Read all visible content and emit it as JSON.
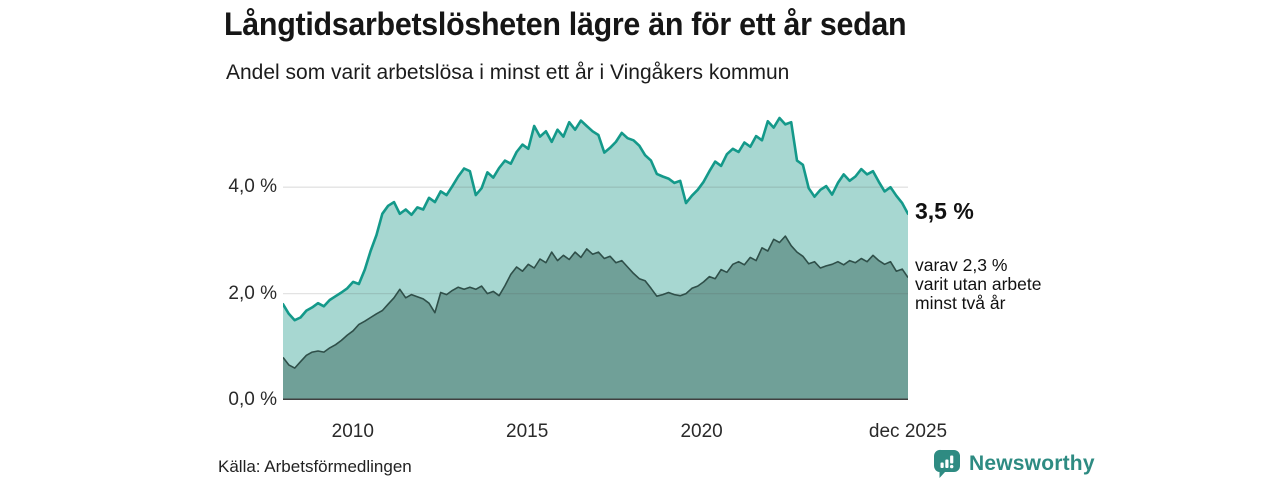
{
  "header": {
    "title": "Långtidsarbetslösheten lägre än för ett år sedan",
    "subtitle": "Andel som varit arbetslösa i minst ett år i Vingåkers kommun"
  },
  "annotations": {
    "end_value": "3,5 %",
    "sub_lines": [
      "varav 2,3 %",
      "varit utan arbete",
      "minst två år"
    ]
  },
  "footer": {
    "source": "Källa: Arbetsförmedlingen",
    "brand": "Newsworthy"
  },
  "colors": {
    "line_total": "#14998a",
    "fill_total": "#a7d7d1",
    "line_two_year": "#2f4f49",
    "fill_two_year": "#70a098",
    "grid": "rgba(80,80,80,0.16)",
    "baseline": "#3f3f3f",
    "brand": "#2e8b82"
  },
  "chart_data": {
    "type": "area",
    "title": "Långtidsarbetslösheten lägre än för ett år sedan",
    "subtitle": "Andel som varit arbetslösa i minst ett år i Vingåkers kommun",
    "unit": "%",
    "grid": true,
    "x_domain": [
      2008.0,
      2025.917
    ],
    "x_note": "values evenly spaced every 2 months, Jan 2008 - Dec 2025",
    "ylim": [
      0,
      5.45
    ],
    "y_max": 5.45,
    "y_ticks": [
      {
        "label": "0,0 %",
        "value": 0
      },
      {
        "label": "2,0 %",
        "value": 2
      },
      {
        "label": "4,0 %",
        "value": 4
      }
    ],
    "x_ticks": [
      {
        "label": "2010",
        "year": 2010
      },
      {
        "label": "2015",
        "year": 2015
      },
      {
        "label": "2020",
        "year": 2020
      },
      {
        "label": "dec 2025",
        "year": 2025.917
      }
    ],
    "series": [
      {
        "name": "Andel arbetslösa minst ett år",
        "end_label": "3,5 %",
        "end_value": 3.5,
        "values": [
          1.8,
          1.62,
          1.5,
          1.55,
          1.68,
          1.74,
          1.82,
          1.76,
          1.88,
          1.95,
          2.02,
          2.1,
          2.22,
          2.18,
          2.45,
          2.8,
          3.1,
          3.5,
          3.65,
          3.72,
          3.5,
          3.58,
          3.48,
          3.62,
          3.58,
          3.8,
          3.72,
          3.92,
          3.85,
          4.02,
          4.2,
          4.35,
          4.3,
          3.85,
          3.98,
          4.28,
          4.18,
          4.36,
          4.5,
          4.44,
          4.66,
          4.8,
          4.72,
          5.15,
          4.95,
          5.05,
          4.85,
          5.08,
          4.95,
          5.22,
          5.08,
          5.25,
          5.15,
          5.05,
          4.98,
          4.65,
          4.74,
          4.85,
          5.02,
          4.92,
          4.88,
          4.78,
          4.6,
          4.5,
          4.25,
          4.2,
          4.16,
          4.08,
          4.12,
          3.7,
          3.84,
          3.95,
          4.1,
          4.3,
          4.48,
          4.4,
          4.62,
          4.72,
          4.66,
          4.84,
          4.76,
          4.96,
          4.88,
          5.24,
          5.12,
          5.3,
          5.18,
          5.22,
          4.5,
          4.42,
          3.98,
          3.82,
          3.95,
          4.02,
          3.86,
          4.08,
          4.24,
          4.12,
          4.2,
          4.34,
          4.24,
          4.3,
          4.1,
          3.92,
          4.0,
          3.84,
          3.7,
          3.5
        ]
      },
      {
        "name": "varav utan arbete minst två år",
        "end_label": "varav 2,3 %",
        "end_value": 2.3,
        "values": [
          0.8,
          0.66,
          0.6,
          0.72,
          0.84,
          0.9,
          0.92,
          0.9,
          0.98,
          1.04,
          1.12,
          1.22,
          1.3,
          1.42,
          1.48,
          1.55,
          1.62,
          1.68,
          1.8,
          1.92,
          2.08,
          1.92,
          1.98,
          1.94,
          1.9,
          1.82,
          1.64,
          2.02,
          1.98,
          2.06,
          2.12,
          2.08,
          2.12,
          2.08,
          2.14,
          2.0,
          2.04,
          1.96,
          2.15,
          2.36,
          2.5,
          2.42,
          2.55,
          2.48,
          2.65,
          2.58,
          2.78,
          2.62,
          2.72,
          2.64,
          2.78,
          2.68,
          2.84,
          2.74,
          2.78,
          2.66,
          2.7,
          2.58,
          2.62,
          2.5,
          2.38,
          2.28,
          2.24,
          2.1,
          1.95,
          1.98,
          2.02,
          1.98,
          1.96,
          2.0,
          2.1,
          2.14,
          2.22,
          2.32,
          2.28,
          2.45,
          2.4,
          2.55,
          2.6,
          2.54,
          2.68,
          2.62,
          2.86,
          2.8,
          3.02,
          2.96,
          3.08,
          2.9,
          2.78,
          2.7,
          2.56,
          2.6,
          2.48,
          2.52,
          2.55,
          2.6,
          2.54,
          2.62,
          2.58,
          2.66,
          2.6,
          2.72,
          2.62,
          2.55,
          2.6,
          2.42,
          2.46,
          2.3
        ]
      }
    ]
  }
}
